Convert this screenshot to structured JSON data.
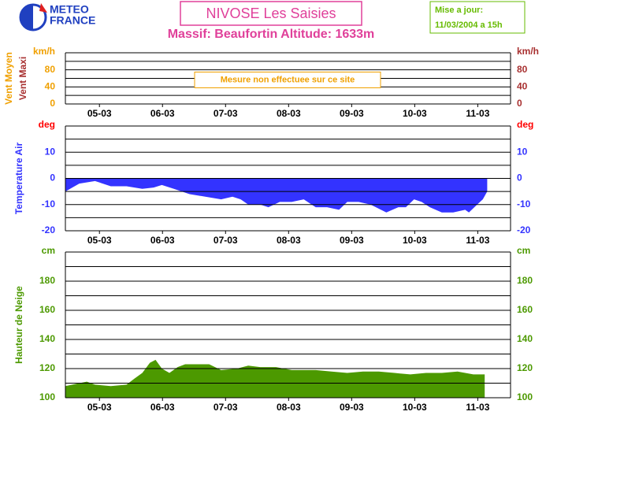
{
  "header": {
    "logo": [
      "METEO",
      "FRANCE"
    ],
    "title": "NIVOSE Les Saisies",
    "subtitle": "Massif: Beaufortin Altitude: 1633m",
    "update": [
      "Mise a jour:",
      "11/03/2004 a 15h"
    ]
  },
  "chart_data": [
    {
      "type": "line",
      "ylabels": [
        {
          "text": "Vent Moyen",
          "color": "#f0a000"
        },
        {
          "text": "Vent Maxi",
          "color": "#a83030"
        }
      ],
      "unit": "km/h",
      "unit_colors": [
        "#f0a000",
        "#a83030"
      ],
      "tick_colors": [
        "#f0a000",
        "#a83030"
      ],
      "annotation": "Mesure non effectuee sur ce site",
      "xlim": [
        4.46,
        11.52
      ],
      "xticks": [
        {
          "value": 5,
          "label": "05-03"
        },
        {
          "value": 6,
          "label": "06-03"
        },
        {
          "value": 7,
          "label": "07-03"
        },
        {
          "value": 8,
          "label": "08-03"
        },
        {
          "value": 9,
          "label": "09-03"
        },
        {
          "value": 10,
          "label": "10-03"
        },
        {
          "value": 11,
          "label": "11-03"
        }
      ],
      "ylim": [
        0,
        120
      ],
      "yticks": [
        0,
        40,
        80
      ],
      "ygrid": [
        0,
        20,
        40,
        60,
        80,
        100,
        120
      ]
    },
    {
      "type": "area",
      "ylabels": [
        {
          "text": "Temperature Air",
          "color": "#3333ff"
        }
      ],
      "unit": "deg",
      "unit_colors": [
        "#ff0000",
        "#ff0000"
      ],
      "tick_colors": [
        "#3333ff",
        "#3333ff"
      ],
      "baseline": 0,
      "xlim": [
        4.46,
        11.52
      ],
      "xticks": [
        {
          "value": 5,
          "label": "05-03"
        },
        {
          "value": 6,
          "label": "06-03"
        },
        {
          "value": 7,
          "label": "07-03"
        },
        {
          "value": 8,
          "label": "08-03"
        },
        {
          "value": 9,
          "label": "09-03"
        },
        {
          "value": 10,
          "label": "10-03"
        },
        {
          "value": 11,
          "label": "11-03"
        }
      ],
      "ylim": [
        -20,
        20
      ],
      "yticks": [
        -20,
        -10,
        0,
        10
      ],
      "ygrid": [
        -20,
        -15,
        -10,
        -5,
        0,
        5,
        10,
        15,
        20
      ],
      "series": [
        {
          "color": "#3333ff",
          "x": [
            4.46,
            4.68,
            4.93,
            5.18,
            5.43,
            5.68,
            5.86,
            5.99,
            6.18,
            6.43,
            6.68,
            6.93,
            7.11,
            7.24,
            7.36,
            7.55,
            7.68,
            7.86,
            8.05,
            8.24,
            8.43,
            8.61,
            8.8,
            8.93,
            9.11,
            9.3,
            9.55,
            9.74,
            9.86,
            9.99,
            10.11,
            10.24,
            10.43,
            10.61,
            10.8,
            10.86,
            10.99,
            11.08,
            11.15
          ],
          "values": [
            -5,
            -2,
            -1,
            -3,
            -3,
            -4,
            -3.5,
            -2.5,
            -4,
            -6,
            -7,
            -8,
            -7,
            -8,
            -10,
            -10,
            -11,
            -9,
            -9,
            -8,
            -11,
            -11,
            -12,
            -9,
            -9,
            -10,
            -13,
            -11,
            -11,
            -8,
            -9,
            -11,
            -13,
            -13,
            -12,
            -13,
            -10,
            -8,
            -5
          ]
        }
      ]
    },
    {
      "type": "area",
      "ylabels": [
        {
          "text": "Hauteur de Neige",
          "color": "#4c9900"
        }
      ],
      "unit": "cm",
      "unit_colors": [
        "#4c9900",
        "#4c9900"
      ],
      "tick_colors": [
        "#4c9900",
        "#4c9900"
      ],
      "baseline": 100,
      "xlim": [
        4.46,
        11.52
      ],
      "xticks": [
        {
          "value": 5,
          "label": "05-03"
        },
        {
          "value": 6,
          "label": "06-03"
        },
        {
          "value": 7,
          "label": "07-03"
        },
        {
          "value": 8,
          "label": "08-03"
        },
        {
          "value": 9,
          "label": "09-03"
        },
        {
          "value": 10,
          "label": "10-03"
        },
        {
          "value": 11,
          "label": "11-03"
        }
      ],
      "ylim": [
        100,
        200
      ],
      "yticks": [
        100,
        120,
        140,
        160,
        180
      ],
      "ygrid": [
        100,
        110,
        120,
        130,
        140,
        150,
        160,
        170,
        180,
        190,
        200
      ],
      "series": [
        {
          "color": "#4c9900",
          "x": [
            4.46,
            4.68,
            4.8,
            4.93,
            5.18,
            5.43,
            5.55,
            5.68,
            5.8,
            5.89,
            5.99,
            6.11,
            6.24,
            6.36,
            6.55,
            6.74,
            6.93,
            7.18,
            7.36,
            7.55,
            7.8,
            8.05,
            8.43,
            8.68,
            8.93,
            9.18,
            9.43,
            9.68,
            9.93,
            10.18,
            10.43,
            10.68,
            10.93,
            11.11
          ],
          "values": [
            108,
            110,
            111,
            109,
            108,
            109,
            113,
            117,
            124,
            126,
            120,
            117,
            121,
            123,
            123,
            123,
            119,
            120,
            122,
            121,
            121,
            119,
            119,
            118,
            117,
            118,
            118,
            117,
            116,
            117,
            117,
            118,
            116,
            116
          ]
        }
      ]
    }
  ]
}
